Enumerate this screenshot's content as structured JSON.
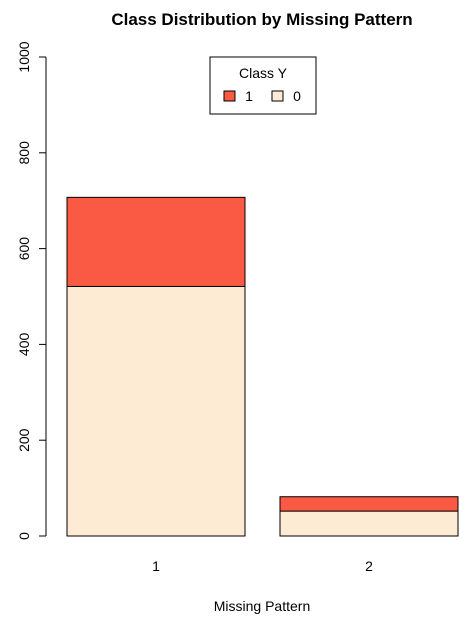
{
  "chart_data": {
    "type": "bar",
    "stacked": true,
    "title": "Class Distribution by Missing Pattern",
    "xlabel": "Missing Pattern",
    "ylabel": "",
    "categories": [
      "1",
      "2"
    ],
    "ylim": [
      0,
      1000
    ],
    "yticks": [
      "0",
      "200",
      "400",
      "600",
      "800",
      "1000"
    ],
    "series": [
      {
        "name": "0",
        "color": "#FDEBD3",
        "values": [
          521,
          52
        ]
      },
      {
        "name": "1",
        "color": "#FA5A44",
        "values": [
          186,
          30
        ]
      }
    ],
    "legend": {
      "title": "Class Y",
      "position": "top-center",
      "entries": [
        {
          "label": "1",
          "color": "#FA5A44"
        },
        {
          "label": "0",
          "color": "#FDEBD3"
        }
      ]
    },
    "grid": false
  }
}
